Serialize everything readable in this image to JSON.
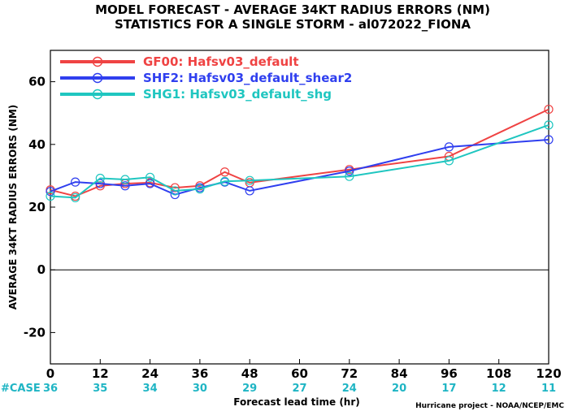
{
  "title_line1": "MODEL FORECAST - AVERAGE 34KT RADIUS ERRORS (NM)",
  "title_line2": "STATISTICS FOR A SINGLE STORM - al072022_FIONA",
  "case_label": "#CASE",
  "credit": "Hurricane project - NOAA/NCEP/EMC",
  "colors": {
    "zero_line": "#000000",
    "axis": "#000000",
    "case_text": "#1fb5c4"
  },
  "chart_data": {
    "type": "line",
    "xlabel": "Forecast lead time (hr)",
    "ylabel": "AVERAGE 34KT RADIUS ERRORS (NM)",
    "xlim": [
      0,
      120
    ],
    "ylim": [
      -30,
      70
    ],
    "xticks": [
      0,
      12,
      24,
      36,
      48,
      60,
      72,
      84,
      96,
      108,
      120
    ],
    "yticks": [
      -20,
      0,
      20,
      40,
      60
    ],
    "case_counts": [
      {
        "x": 0,
        "n": "36"
      },
      {
        "x": 12,
        "n": "35"
      },
      {
        "x": 24,
        "n": "34"
      },
      {
        "x": 36,
        "n": "30"
      },
      {
        "x": 48,
        "n": "29"
      },
      {
        "x": 60,
        "n": "27"
      },
      {
        "x": 72,
        "n": "24"
      },
      {
        "x": 84,
        "n": "20"
      },
      {
        "x": 96,
        "n": "17"
      },
      {
        "x": 108,
        "n": "12"
      },
      {
        "x": 120,
        "n": "11"
      }
    ],
    "series": [
      {
        "name": "GF00: Hafsv03_default",
        "color": "#ef4343",
        "x": [
          0,
          6,
          12,
          18,
          24,
          30,
          36,
          42,
          48,
          72,
          96,
          120
        ],
        "values": [
          25.5,
          23.5,
          26.8,
          27.5,
          27.8,
          26.2,
          26.8,
          31.2,
          27.8,
          32.0,
          36.2,
          51.2
        ]
      },
      {
        "name": "SHF2: Hafsv03_default_shear2",
        "color": "#2f3fef",
        "x": [
          0,
          6,
          12,
          18,
          24,
          30,
          36,
          42,
          48,
          72,
          96,
          120
        ],
        "values": [
          25.0,
          28.0,
          27.5,
          26.8,
          27.5,
          24.0,
          26.2,
          28.0,
          25.2,
          31.5,
          39.2,
          41.5
        ]
      },
      {
        "name": "SHG1: Hafsv03_default_shg",
        "color": "#1fc6c0",
        "x": [
          0,
          6,
          12,
          18,
          24,
          30,
          36,
          42,
          48,
          72,
          96,
          120
        ],
        "values": [
          23.5,
          23.0,
          29.2,
          28.8,
          29.5,
          25.2,
          25.8,
          28.2,
          28.5,
          29.8,
          34.8,
          46.2
        ]
      }
    ]
  }
}
